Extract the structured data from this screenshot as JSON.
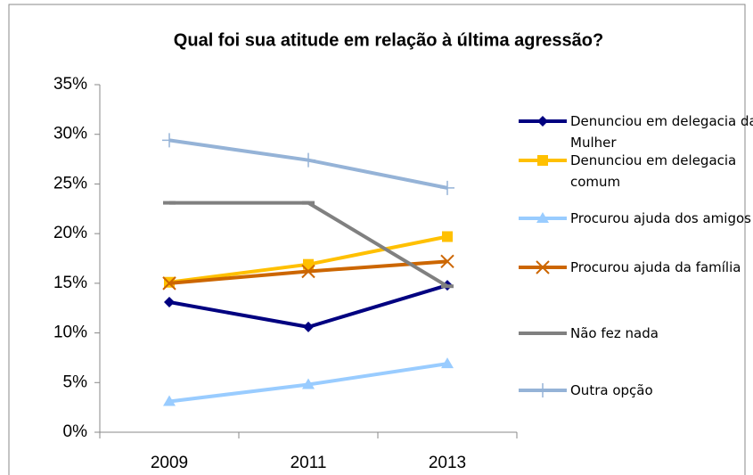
{
  "chart_data": {
    "type": "line",
    "title": "Qual foi sua atitude em relação à última agressão?",
    "categories": [
      "2009",
      "2011",
      "2013"
    ],
    "series": [
      {
        "name": "Denunciou em delegacia da Mulher",
        "color": "#000080",
        "marker": "diamond",
        "values": [
          13.1,
          10.6,
          14.8
        ]
      },
      {
        "name": "Denunciou em delegacia comum",
        "color": "#FFC000",
        "marker": "square",
        "values": [
          15.1,
          16.9,
          19.7
        ]
      },
      {
        "name": "Procurou ajuda dos amigos",
        "color": "#99CCFF",
        "marker": "triangle",
        "values": [
          3.1,
          4.8,
          6.9
        ]
      },
      {
        "name": "Procurou ajuda da família",
        "color": "#CC6600",
        "marker": "x",
        "values": [
          15.0,
          16.2,
          17.2
        ]
      },
      {
        "name": "Não fez nada",
        "color": "#808080",
        "marker": "dash",
        "values": [
          23.1,
          23.1,
          14.7
        ]
      },
      {
        "name": "Outra opção",
        "color": "#95B3D7",
        "marker": "plus",
        "values": [
          29.4,
          27.4,
          24.6
        ]
      }
    ],
    "ylim": [
      0,
      35
    ],
    "yticks": [
      {
        "value": 0,
        "label": "0%"
      },
      {
        "value": 5,
        "label": "5%"
      },
      {
        "value": 10,
        "label": "10%"
      },
      {
        "value": 15,
        "label": "15%"
      },
      {
        "value": 20,
        "label": "20%"
      },
      {
        "value": 25,
        "label": "25%"
      },
      {
        "value": 30,
        "label": "30%"
      },
      {
        "value": 35,
        "label": "35%"
      }
    ],
    "grid": false
  }
}
